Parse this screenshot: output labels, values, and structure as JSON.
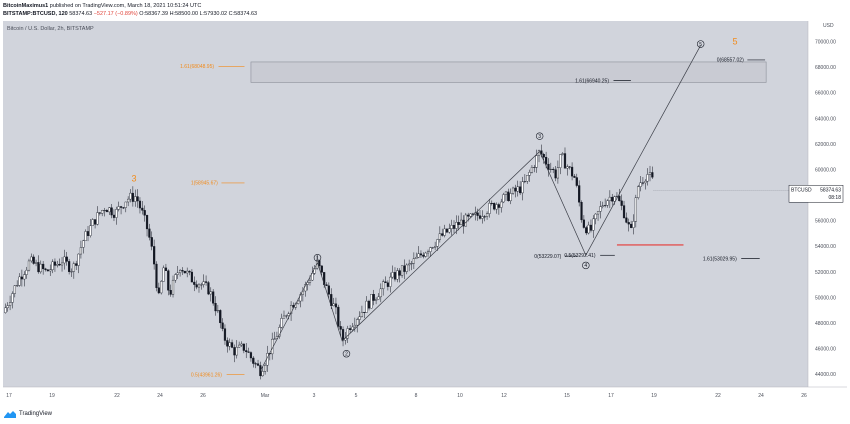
{
  "header": {
    "author": "BitcoinMaximus1",
    "published": "published on TradingView.com, March 18, 2021 10:51:24 UTC",
    "symbol_line": "BITSTAMP:BTCUSD, 120",
    "last": "58374.63",
    "change": "−527.17 (−0.89%)",
    "o_label": "O:",
    "o_value": "58367.39",
    "h_label": "H:",
    "h_value": "58500.00",
    "l_label": "L:",
    "l_value": "57930.02",
    "c_label": "C:",
    "c_value": "58374.63"
  },
  "footer": {
    "brand": "TradingView"
  },
  "colors": {
    "background": "#d1d4dc",
    "chart_bg": "#ffffff",
    "candle": "#131722",
    "wave_orange": "#f28b1b",
    "support_red": "#e53935",
    "box_fill": "#c9cbd3",
    "price_tag_bg": "#ffffff"
  },
  "chart_data": {
    "type": "candlestick",
    "title": "Bitcoin / U.S. Dollar, 2h, BITSTAMP",
    "currency": "USD",
    "ylim": [
      43000,
      71600
    ],
    "y_ticks": [
      44000,
      46000,
      48000,
      50000,
      52000,
      54000,
      56000,
      58000,
      60000,
      62000,
      64000,
      66000,
      68000,
      70000
    ],
    "y_tick_labels": [
      "44000.00",
      "46000.00",
      "48000.00",
      "50000.00",
      "52000.00",
      "54000.00",
      "56000.00",
      "58000.00",
      "60000.00",
      "62000.00",
      "64000.00",
      "66000.00",
      "68000.00",
      "70000.00"
    ],
    "x_tick_labels": [
      "17",
      "19",
      "22",
      "24",
      "26",
      "Mar",
      "3",
      "5",
      "8",
      "10",
      "12",
      "15",
      "17",
      "19",
      "22",
      "24",
      "26"
    ],
    "last_price": {
      "symbol": "BTCUSD",
      "value": "58374.63",
      "countdown": "08:18"
    },
    "price_path": [
      [
        0,
        48800
      ],
      [
        1.5,
        51500
      ],
      [
        2.5,
        52800
      ],
      [
        4,
        52000
      ],
      [
        5.5,
        52900
      ],
      [
        6.5,
        52200
      ],
      [
        7.5,
        54500
      ],
      [
        8.5,
        56000
      ],
      [
        9.5,
        57100
      ],
      [
        10.5,
        56600
      ],
      [
        11.5,
        57700
      ],
      [
        12.4,
        57900
      ],
      [
        13,
        56500
      ],
      [
        13.5,
        55200
      ],
      [
        14,
        53200
      ],
      [
        14.5,
        49800
      ],
      [
        15,
        52500
      ],
      [
        15.5,
        50200
      ],
      [
        16.5,
        52500
      ],
      [
        17.5,
        51500
      ],
      [
        18.5,
        51000
      ],
      [
        19.2,
        50600
      ],
      [
        20,
        48800
      ],
      [
        20.5,
        47000
      ],
      [
        21.5,
        45800
      ],
      [
        22.5,
        46100
      ],
      [
        23.4,
        44900
      ],
      [
        24,
        44300
      ],
      [
        25.3,
        46700
      ],
      [
        26.5,
        49000
      ],
      [
        28,
        50600
      ],
      [
        29.3,
        52700
      ],
      [
        30,
        51000
      ],
      [
        31,
        48900
      ],
      [
        31.6,
        46600
      ],
      [
        32.3,
        47800
      ],
      [
        34,
        49500
      ],
      [
        35.4,
        50800
      ],
      [
        36.5,
        51700
      ],
      [
        37.8,
        52400
      ],
      [
        39.5,
        53800
      ],
      [
        41,
        54900
      ],
      [
        42.5,
        55800
      ],
      [
        44,
        56300
      ],
      [
        45.5,
        57100
      ],
      [
        47.2,
        58000
      ],
      [
        48.5,
        58700
      ],
      [
        50,
        61400
      ],
      [
        50.6,
        60600
      ],
      [
        51.5,
        59600
      ],
      [
        52,
        61000
      ],
      [
        53.3,
        59300
      ],
      [
        54,
        55800
      ],
      [
        54.7,
        55100
      ],
      [
        55.4,
        56500
      ],
      [
        56,
        57500
      ],
      [
        57,
        58100
      ],
      [
        57.8,
        56800
      ],
      [
        58.5,
        55000
      ],
      [
        59.2,
        58800
      ],
      [
        60,
        59700
      ],
      [
        60.6,
        59000
      ]
    ],
    "wave_labels": [
      {
        "text": "3",
        "x": 12.2,
        "y": 59300,
        "style": "orange"
      },
      {
        "text": "5",
        "x": 68.2,
        "y": 70000,
        "style": "orange"
      },
      {
        "text": "1",
        "x": 29.3,
        "y": 53100,
        "style": "circle"
      },
      {
        "text": "2",
        "x": 32.0,
        "y": 45600,
        "style": "circle"
      },
      {
        "text": "3",
        "x": 50.0,
        "y": 62600,
        "style": "circle"
      },
      {
        "text": "4",
        "x": 54.3,
        "y": 52500,
        "style": "circle"
      },
      {
        "text": "5",
        "x": 65.0,
        "y": 69800,
        "style": "circle"
      }
    ],
    "wave_path": [
      [
        24,
        44300
      ],
      [
        29.3,
        52700
      ],
      [
        31.6,
        46600
      ],
      [
        50,
        61400
      ],
      [
        54.3,
        53300
      ],
      [
        65,
        69700
      ]
    ],
    "fib_levels": [
      {
        "label": "1.61(68048.95)",
        "value": 68048.95,
        "x_from": 16.5,
        "x_to": 22.5,
        "color": "orange"
      },
      {
        "label": "1(58945.67)",
        "value": 58945.67,
        "x_from": 17.5,
        "x_to": 22.5,
        "color": "orange"
      },
      {
        "label": "0.5(43961.26)",
        "value": 43961.26,
        "x_from": 17.5,
        "x_to": 22.5,
        "color": "orange"
      },
      {
        "label": "0(68557.02)",
        "value": 68557.02,
        "x_from": 66.5,
        "x_to": 71,
        "color": "dark"
      },
      {
        "label": "1.61(66940.25)",
        "value": 66940.25,
        "x_from": 53.3,
        "x_to": 58.5,
        "color": "dark"
      },
      {
        "label": "0(53229.07)",
        "value": 53229.07,
        "x_from": 49.5,
        "x_to": 53.5,
        "color": "dark"
      },
      {
        "label": "0.5(53292.41)",
        "value": 53292.41,
        "x_from": 52.3,
        "x_to": 57,
        "color": "dark"
      },
      {
        "label": "1.61(53029.95)",
        "value": 53029.95,
        "x_from": 65.2,
        "x_to": 70.5,
        "color": "dark"
      }
    ],
    "target_box": {
      "x_from": 23.1,
      "x_to": 71.1,
      "y_from": 66800,
      "y_to": 68400
    },
    "support_line": {
      "x_from": 57.2,
      "x_to": 63.4,
      "value": 54100
    },
    "x_axis_range": [
      0,
      75
    ],
    "grid": false,
    "legend": "none"
  }
}
